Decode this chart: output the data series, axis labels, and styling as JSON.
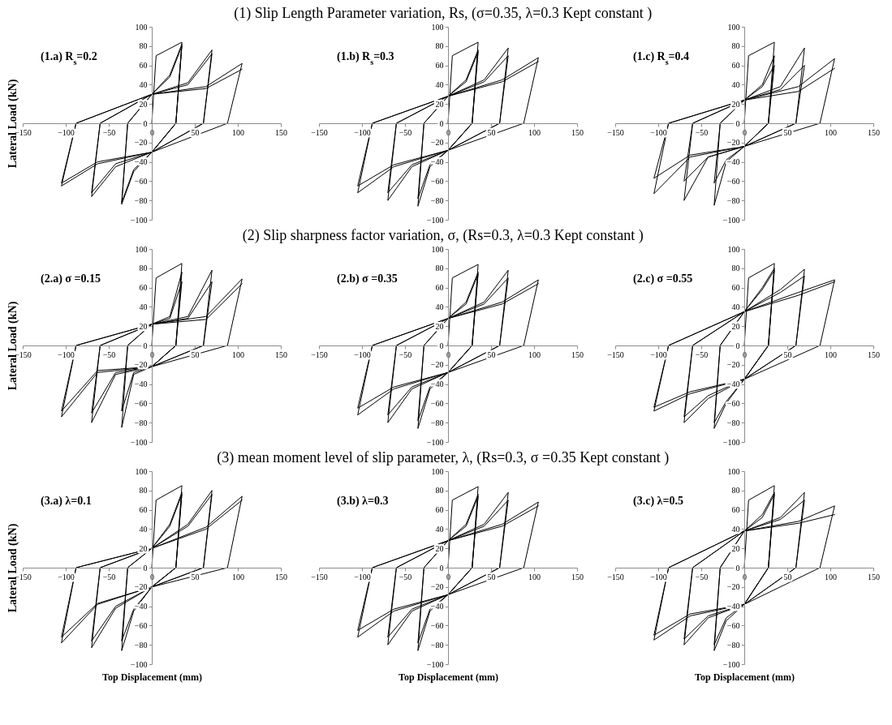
{
  "chart_data": [
    {
      "type": "line",
      "title": "(1.a) R$_{s}$=0.2",
      "ylabel": "Lateral Load (kN)",
      "color": "#000000",
      "xlim": [
        -150,
        150
      ],
      "ylim": [
        -100,
        100
      ],
      "xticks": [
        -150,
        -100,
        -50,
        0,
        50,
        100,
        150
      ],
      "yticks": [
        -100,
        -80,
        -60,
        -40,
        -20,
        0,
        20,
        40,
        60,
        80,
        100
      ],
      "x": [
        0,
        5,
        35,
        28,
        0,
        -21,
        -35,
        -28,
        0,
        21,
        35,
        28,
        0,
        -21,
        -35,
        -28,
        0,
        21,
        35,
        28,
        0,
        -42,
        -70,
        -60,
        0,
        42,
        70,
        60,
        0,
        -42,
        -70,
        -60,
        0,
        42,
        70,
        60,
        0,
        -63,
        -105,
        -88,
        0,
        63,
        105,
        88,
        0,
        -63,
        -105,
        -88,
        0,
        63,
        105
      ],
      "values": [
        0,
        70,
        84,
        0,
        -30,
        -50,
        -84,
        0,
        30,
        50,
        82,
        0,
        -30,
        -48,
        -82,
        0,
        30,
        48,
        80,
        0,
        -30,
        -45,
        -76,
        0,
        30,
        42,
        76,
        0,
        -30,
        -42,
        -72,
        0,
        30,
        40,
        72,
        0,
        -30,
        -42,
        -65,
        0,
        30,
        38,
        62,
        0,
        -30,
        -40,
        -62,
        0,
        30,
        36,
        56
      ]
    },
    {
      "type": "line",
      "subtitle": "(1) Slip Length Parameter variation, Rs, (σ=0.35, λ=0.3 Kept constant )",
      "title": "(1.b) R$_{s}$=0.3",
      "color": "#000000",
      "xlim": [
        -150,
        150
      ],
      "ylim": [
        -100,
        100
      ],
      "xticks": [
        -150,
        -100,
        -50,
        0,
        50,
        100,
        150
      ],
      "yticks": [
        -100,
        -80,
        -60,
        -40,
        -20,
        0,
        20,
        40,
        60,
        80,
        100
      ],
      "x": [
        0,
        5,
        35,
        28,
        0,
        -21,
        -35,
        -28,
        0,
        21,
        35,
        28,
        0,
        -21,
        -35,
        -28,
        0,
        21,
        35,
        28,
        0,
        -42,
        -70,
        -60,
        0,
        42,
        70,
        60,
        0,
        -42,
        -70,
        -60,
        0,
        42,
        70,
        60,
        0,
        -63,
        -105,
        -88,
        0,
        63,
        105,
        88,
        0,
        -63,
        -105,
        -88,
        0,
        63,
        105
      ],
      "values": [
        0,
        70,
        84,
        0,
        -28,
        -45,
        -86,
        0,
        28,
        45,
        76,
        0,
        -28,
        -43,
        -78,
        0,
        28,
        43,
        74,
        0,
        -28,
        -45,
        -80,
        0,
        28,
        45,
        78,
        0,
        -28,
        -43,
        -72,
        0,
        28,
        43,
        70,
        0,
        -28,
        -45,
        -72,
        0,
        28,
        45,
        68,
        0,
        -28,
        -43,
        -65,
        0,
        28,
        43,
        64
      ]
    },
    {
      "type": "line",
      "title": "(1.c) R$_{s}$=0.4",
      "color": "#000000",
      "xlim": [
        -150,
        150
      ],
      "ylim": [
        -100,
        100
      ],
      "xticks": [
        -150,
        -100,
        -50,
        0,
        50,
        100,
        150
      ],
      "yticks": [
        -100,
        -80,
        -60,
        -40,
        -20,
        0,
        20,
        40,
        60,
        80,
        100
      ],
      "x": [
        0,
        5,
        35,
        28,
        0,
        -21,
        -35,
        -28,
        0,
        21,
        35,
        28,
        0,
        -21,
        -35,
        -28,
        0,
        21,
        35,
        28,
        0,
        -42,
        -70,
        -60,
        0,
        42,
        70,
        60,
        0,
        -42,
        -70,
        -60,
        0,
        42,
        70,
        60,
        0,
        -63,
        -105,
        -88,
        0,
        63,
        105,
        88,
        0,
        -63,
        -105,
        -88,
        0,
        63,
        105
      ],
      "values": [
        0,
        70,
        84,
        0,
        -24,
        -40,
        -85,
        0,
        24,
        40,
        70,
        0,
        -24,
        -38,
        -62,
        0,
        24,
        38,
        60,
        0,
        -24,
        -35,
        -80,
        0,
        24,
        38,
        78,
        0,
        -24,
        -35,
        -60,
        0,
        24,
        35,
        60,
        0,
        -24,
        -35,
        -73,
        0,
        24,
        38,
        67,
        0,
        -24,
        -33,
        -57,
        0,
        24,
        33,
        57
      ]
    },
    {
      "type": "line",
      "title": "(2.a) σ =0.15",
      "ylabel": "Lateral Load (kN)",
      "color": "#000000",
      "xlim": [
        -150,
        150
      ],
      "ylim": [
        -100,
        100
      ],
      "xticks": [
        -150,
        -100,
        -50,
        0,
        50,
        100,
        150
      ],
      "yticks": [
        -100,
        -80,
        -60,
        -40,
        -20,
        0,
        20,
        40,
        60,
        80,
        100
      ],
      "x": [
        0,
        5,
        35,
        28,
        0,
        -21,
        -35,
        -28,
        0,
        21,
        35,
        28,
        0,
        -21,
        -35,
        -28,
        0,
        21,
        35,
        28,
        0,
        -42,
        -70,
        -60,
        0,
        42,
        70,
        60,
        0,
        -42,
        -70,
        -60,
        0,
        42,
        70,
        60,
        0,
        -63,
        -105,
        -88,
        0,
        63,
        105,
        88,
        0,
        -63,
        -105,
        -88,
        0,
        63,
        105
      ],
      "values": [
        0,
        70,
        85,
        0,
        -22,
        -30,
        -85,
        0,
        22,
        30,
        76,
        0,
        -22,
        -28,
        -68,
        0,
        22,
        28,
        66,
        0,
        -22,
        -30,
        -80,
        0,
        22,
        30,
        78,
        0,
        -22,
        -28,
        -70,
        0,
        22,
        28,
        66,
        0,
        -22,
        -28,
        -74,
        0,
        22,
        30,
        69,
        0,
        -22,
        -26,
        -68,
        0,
        22,
        27,
        64
      ]
    },
    {
      "type": "line",
      "subtitle": "(2) Slip sharpness factor variation, σ, (Rs=0.3, λ=0.3 Kept constant )",
      "title": "(2.b) σ =0.35",
      "color": "#000000",
      "xlim": [
        -150,
        150
      ],
      "ylim": [
        -100,
        100
      ],
      "xticks": [
        -150,
        -100,
        -50,
        0,
        50,
        100,
        150
      ],
      "yticks": [
        -100,
        -80,
        -60,
        -40,
        -20,
        0,
        20,
        40,
        60,
        80,
        100
      ],
      "x": [
        0,
        5,
        35,
        28,
        0,
        -21,
        -35,
        -28,
        0,
        21,
        35,
        28,
        0,
        -21,
        -35,
        -28,
        0,
        21,
        35,
        28,
        0,
        -42,
        -70,
        -60,
        0,
        42,
        70,
        60,
        0,
        -42,
        -70,
        -60,
        0,
        42,
        70,
        60,
        0,
        -63,
        -105,
        -88,
        0,
        63,
        105,
        88,
        0,
        -63,
        -105,
        -88,
        0,
        63,
        105
      ],
      "values": [
        0,
        70,
        84,
        0,
        -28,
        -45,
        -86,
        0,
        28,
        45,
        76,
        0,
        -28,
        -43,
        -78,
        0,
        28,
        43,
        74,
        0,
        -28,
        -45,
        -80,
        0,
        28,
        45,
        78,
        0,
        -28,
        -43,
        -72,
        0,
        28,
        43,
        70,
        0,
        -28,
        -45,
        -72,
        0,
        28,
        45,
        68,
        0,
        -28,
        -43,
        -65,
        0,
        28,
        43,
        64
      ]
    },
    {
      "type": "line",
      "title": "(2.c) σ =0.55",
      "color": "#000000",
      "xlim": [
        -150,
        150
      ],
      "ylim": [
        -100,
        100
      ],
      "xticks": [
        -150,
        -100,
        -50,
        0,
        50,
        100,
        150
      ],
      "yticks": [
        -100,
        -80,
        -60,
        -40,
        -20,
        0,
        20,
        40,
        60,
        80,
        100
      ],
      "x": [
        0,
        5,
        35,
        28,
        0,
        -21,
        -35,
        -28,
        0,
        21,
        35,
        28,
        0,
        -21,
        -35,
        -28,
        0,
        21,
        35,
        28,
        0,
        -42,
        -70,
        -60,
        0,
        42,
        70,
        60,
        0,
        -42,
        -70,
        -60,
        0,
        42,
        70,
        60,
        0,
        -63,
        -105,
        -88,
        0,
        63,
        105,
        88,
        0,
        -63,
        -105,
        -88,
        0,
        63,
        105
      ],
      "values": [
        0,
        70,
        85,
        0,
        -35,
        -60,
        -86,
        0,
        35,
        60,
        80,
        0,
        -35,
        -58,
        -80,
        0,
        35,
        58,
        78,
        0,
        -35,
        -55,
        -80,
        0,
        35,
        58,
        79,
        0,
        -35,
        -52,
        -74,
        0,
        35,
        55,
        72,
        0,
        -35,
        -50,
        -68,
        0,
        35,
        55,
        68,
        0,
        -35,
        -48,
        -64,
        0,
        35,
        52,
        66
      ]
    },
    {
      "type": "line",
      "title": "(3.a) λ=0.1",
      "ylabel": "Lateral Load (kN)",
      "xlabel": "Top Displacement (mm)",
      "color": "#000000",
      "xlim": [
        -150,
        150
      ],
      "ylim": [
        -100,
        100
      ],
      "xticks": [
        -150,
        -100,
        -50,
        0,
        50,
        100,
        150
      ],
      "yticks": [
        -100,
        -80,
        -60,
        -40,
        -20,
        0,
        20,
        40,
        60,
        80,
        100
      ],
      "x": [
        0,
        5,
        35,
        28,
        0,
        -21,
        -35,
        -28,
        0,
        21,
        35,
        28,
        0,
        -21,
        -35,
        -28,
        0,
        21,
        35,
        28,
        0,
        -42,
        -70,
        -60,
        0,
        42,
        70,
        60,
        0,
        -42,
        -70,
        -60,
        0,
        42,
        70,
        60,
        0,
        -63,
        -105,
        -88,
        0,
        63,
        105,
        88,
        0,
        -63,
        -105,
        -88,
        0,
        63,
        105
      ],
      "values": [
        0,
        70,
        85,
        0,
        -20,
        -45,
        -86,
        0,
        20,
        45,
        78,
        0,
        -20,
        -43,
        -76,
        0,
        20,
        43,
        76,
        0,
        -20,
        -42,
        -83,
        0,
        20,
        45,
        80,
        0,
        -20,
        -40,
        -76,
        0,
        20,
        43,
        76,
        0,
        -20,
        -38,
        -78,
        0,
        20,
        42,
        74,
        0,
        -20,
        -37,
        -72,
        0,
        20,
        40,
        70
      ]
    },
    {
      "type": "line",
      "subtitle": "(3) mean moment level of slip parameter, λ, (Rs=0.3, σ =0.35 Kept constant )",
      "title": "(3.b) λ=0.3",
      "xlabel": "Top Displacement (mm)",
      "color": "#000000",
      "xlim": [
        -150,
        150
      ],
      "ylim": [
        -100,
        100
      ],
      "xticks": [
        -150,
        -100,
        -50,
        0,
        50,
        100,
        150
      ],
      "yticks": [
        -100,
        -80,
        -60,
        -40,
        -20,
        0,
        20,
        40,
        60,
        80,
        100
      ],
      "x": [
        0,
        5,
        35,
        28,
        0,
        -21,
        -35,
        -28,
        0,
        21,
        35,
        28,
        0,
        -21,
        -35,
        -28,
        0,
        21,
        35,
        28,
        0,
        -42,
        -70,
        -60,
        0,
        42,
        70,
        60,
        0,
        -42,
        -70,
        -60,
        0,
        42,
        70,
        60,
        0,
        -63,
        -105,
        -88,
        0,
        63,
        105,
        88,
        0,
        -63,
        -105,
        -88,
        0,
        63,
        105
      ],
      "values": [
        0,
        70,
        84,
        0,
        -28,
        -45,
        -86,
        0,
        28,
        45,
        76,
        0,
        -28,
        -43,
        -78,
        0,
        28,
        43,
        74,
        0,
        -28,
        -45,
        -80,
        0,
        28,
        45,
        78,
        0,
        -28,
        -43,
        -72,
        0,
        28,
        43,
        70,
        0,
        -28,
        -45,
        -72,
        0,
        28,
        45,
        68,
        0,
        -28,
        -43,
        -65,
        0,
        28,
        43,
        64
      ]
    },
    {
      "type": "line",
      "title": "(3.c) λ=0.5",
      "xlabel": "Top Displacement (mm)",
      "color": "#000000",
      "xlim": [
        -150,
        150
      ],
      "ylim": [
        -100,
        100
      ],
      "xticks": [
        -150,
        -100,
        -50,
        0,
        50,
        100,
        150
      ],
      "yticks": [
        -100,
        -80,
        -60,
        -40,
        -20,
        0,
        20,
        40,
        60,
        80,
        100
      ],
      "x": [
        0,
        5,
        35,
        28,
        0,
        -21,
        -35,
        -28,
        0,
        21,
        35,
        28,
        0,
        -21,
        -35,
        -28,
        0,
        21,
        35,
        28,
        0,
        -42,
        -70,
        -60,
        0,
        42,
        70,
        60,
        0,
        -42,
        -70,
        -60,
        0,
        42,
        70,
        60,
        0,
        -63,
        -105,
        -88,
        0,
        63,
        105,
        88,
        0,
        -63,
        -105,
        -88,
        0,
        63,
        105
      ],
      "values": [
        0,
        70,
        85,
        0,
        -38,
        -55,
        -86,
        0,
        38,
        55,
        78,
        0,
        -38,
        -52,
        -80,
        0,
        38,
        52,
        76,
        0,
        -38,
        -52,
        -80,
        0,
        38,
        52,
        78,
        0,
        -38,
        -50,
        -74,
        0,
        38,
        50,
        70,
        0,
        -38,
        -50,
        -75,
        0,
        38,
        48,
        64,
        0,
        -38,
        -48,
        -70,
        0,
        38,
        46,
        55
      ]
    }
  ]
}
